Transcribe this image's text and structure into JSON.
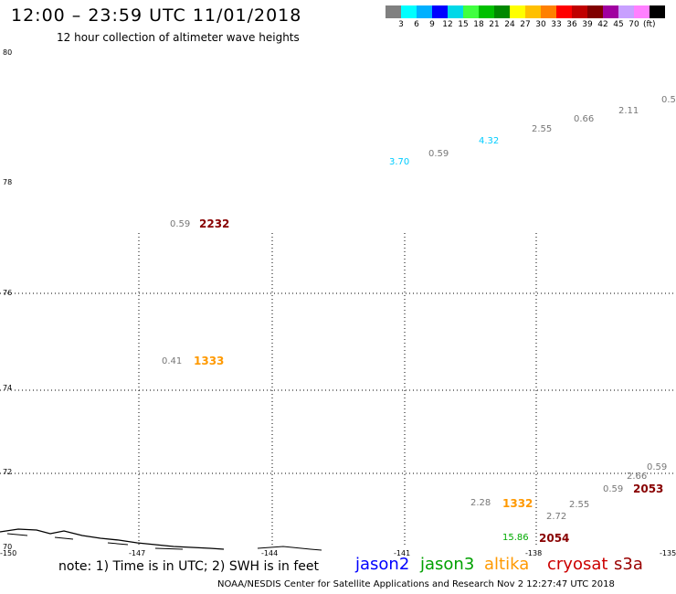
{
  "header": {
    "title": "12:00 – 23:59 UTC 11/01/2018",
    "subtitle": "12 hour collection of altimeter wave heights"
  },
  "scale": {
    "colors": [
      "#808080",
      "#00ffff",
      "#00b0ff",
      "#0000ff",
      "#00d8e8",
      "#40ff40",
      "#00c000",
      "#008800",
      "#ffff00",
      "#ffc000",
      "#ff8000",
      "#ff0000",
      "#c00000",
      "#800000",
      "#a000a0",
      "#c8a0ff",
      "#ff80ff",
      "#000000"
    ],
    "labels": [
      "3",
      "6",
      "9",
      "12",
      "15",
      "18",
      "21",
      "24",
      "27",
      "30",
      "33",
      "36",
      "39",
      "42",
      "45",
      "70"
    ],
    "unit": "(ft)"
  },
  "axes": {
    "lat_labels": [
      "80",
      "78",
      "76",
      "74",
      "72",
      "70"
    ],
    "lon_labels": [
      "-150",
      "-147",
      "-144",
      "-141",
      "-138",
      "-135"
    ]
  },
  "readings": [
    {
      "text": "0.5"
    },
    {
      "text": "2.11"
    },
    {
      "text": "0.66"
    },
    {
      "text": "2.55"
    },
    {
      "text": "4.32"
    },
    {
      "text": "0.59"
    },
    {
      "text": "3.70"
    },
    {
      "text": "0.59"
    },
    {
      "text": "0.41"
    },
    {
      "text": "0.59"
    },
    {
      "text": "2.66"
    },
    {
      "text": "0.59"
    },
    {
      "text": "2.55"
    },
    {
      "text": "2.72"
    },
    {
      "text": "2.28"
    },
    {
      "text": "15.86"
    }
  ],
  "cycles": [
    "2232",
    "1333",
    "1332",
    "2053",
    "2054"
  ],
  "note": "note: 1) Time is in UTC; 2) SWH is in feet",
  "satellites": [
    {
      "name": "jason2",
      "color": "#0000ff"
    },
    {
      "name": "jason3",
      "color": "#00a000"
    },
    {
      "name": "altika",
      "color": "#ff9900"
    },
    {
      "name": "cryosat",
      "color": "#cc0000"
    },
    {
      "name": "s3a",
      "color": "#990000"
    }
  ],
  "credit": "NOAA/NESDIS Center for Satellite Applications and Research    Nov  2 12:27:47 UTC 2018",
  "colors": {
    "gray": "#777777",
    "cyan": "#00ccff",
    "orange": "#ff9900",
    "darkred": "#880000",
    "green": "#00aa00"
  }
}
